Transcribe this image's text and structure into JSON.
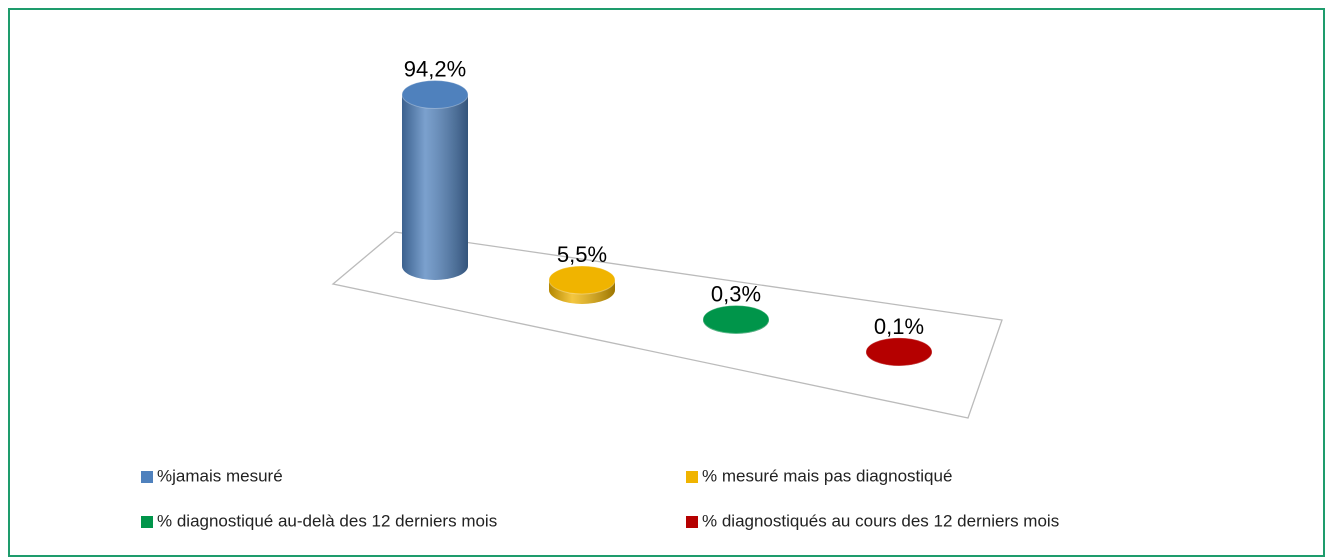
{
  "chart_data": {
    "type": "bar",
    "categories": [
      "%jamais mesuré",
      "% mesuré mais pas diagnostiqué",
      "% diagnostiqué au-delà des 12 derniers mois",
      "% diagnostiqués  au cours des 12 derniers mois"
    ],
    "values": [
      94.2,
      5.5,
      0.3,
      0.1
    ],
    "value_labels": [
      "94,2%",
      "5,5%",
      "0,3%",
      "0,1%"
    ],
    "colors": [
      "#4f81bd",
      "#f0b400",
      "#00954a",
      "#b50000"
    ],
    "legend": "bottom"
  }
}
